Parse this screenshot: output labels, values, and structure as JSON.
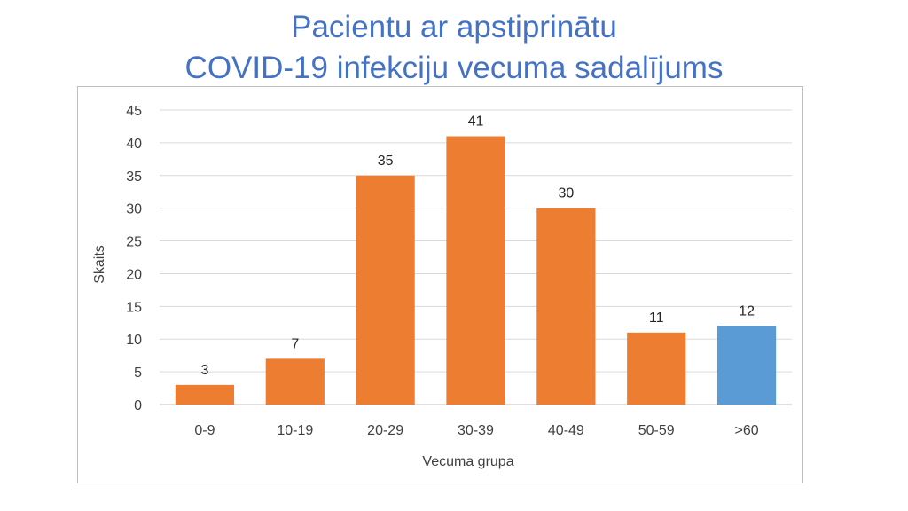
{
  "title": {
    "line1": "Pacientu ar apstiprinātu",
    "line2": "COVID-19 infekciju vecuma sadalījums"
  },
  "colors": {
    "title": "#4472c4",
    "bar_default": "#ed7d31",
    "bar_highlight": "#5b9bd5",
    "grid": "#d9d9d9",
    "axis_text": "#404040",
    "label_text": "#262626"
  },
  "chart_data": {
    "type": "bar",
    "title": "Pacientu ar apstiprinātu COVID-19 infekciju vecuma sadalījums",
    "xlabel": "Vecuma grupa",
    "ylabel": "Skaits",
    "categories": [
      "0-9",
      "10-19",
      "20-29",
      "30-39",
      "40-49",
      "50-59",
      ">60"
    ],
    "values": [
      3,
      7,
      35,
      41,
      30,
      11,
      12
    ],
    "data_labels": [
      "3",
      "7",
      "35",
      "41",
      "30",
      "11",
      "12"
    ],
    "bar_colors": [
      "#ed7d31",
      "#ed7d31",
      "#ed7d31",
      "#ed7d31",
      "#ed7d31",
      "#ed7d31",
      "#5b9bd5"
    ],
    "ylim": [
      0,
      45
    ],
    "yticks": [
      0,
      5,
      10,
      15,
      20,
      25,
      30,
      35,
      40,
      45
    ],
    "ytick_labels": [
      "0",
      "5",
      "10",
      "15",
      "20",
      "25",
      "30",
      "35",
      "40",
      "45"
    ],
    "grid": true,
    "legend": "none"
  }
}
